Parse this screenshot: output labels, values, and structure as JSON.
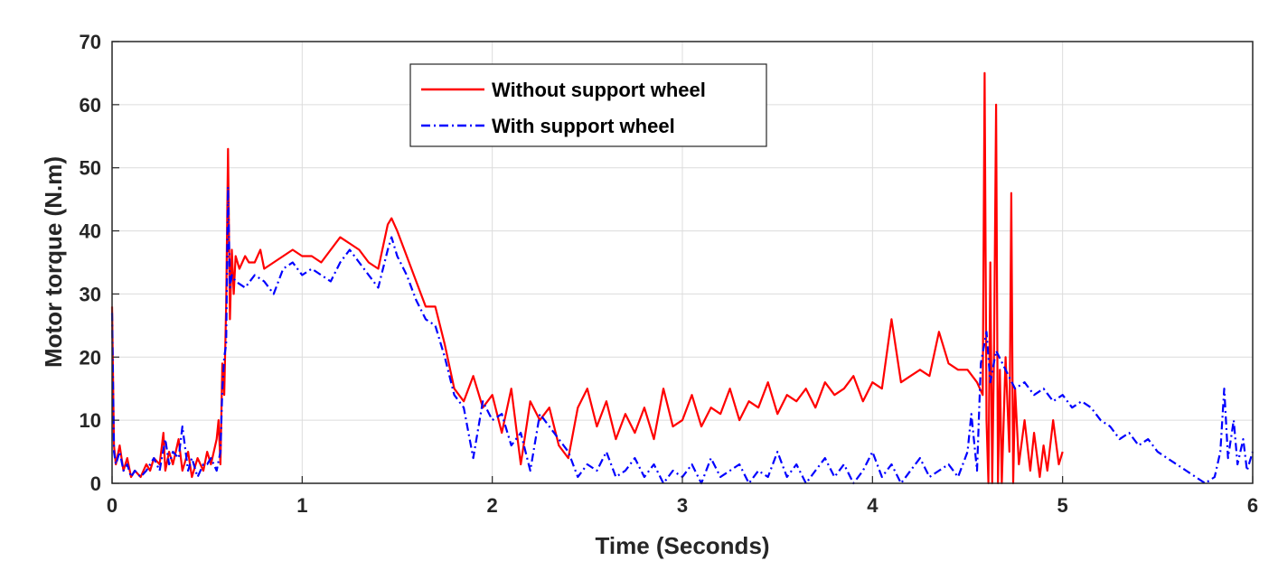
{
  "chart_data": {
    "type": "line",
    "title": "",
    "xlabel": "Time (Seconds)",
    "ylabel": "Motor torque (N.m)",
    "xlim": [
      0,
      6
    ],
    "ylim": [
      0,
      70
    ],
    "xticks": [
      0,
      1,
      2,
      3,
      4,
      5,
      6
    ],
    "yticks": [
      0,
      10,
      20,
      30,
      40,
      50,
      60,
      70
    ],
    "xtick_labels": [
      "0",
      "1",
      "2",
      "3",
      "4",
      "5",
      "6"
    ],
    "ytick_labels": [
      "0",
      "10",
      "20",
      "30",
      "40",
      "50",
      "60",
      "70"
    ],
    "grid": true,
    "legend_position": "top-center",
    "series": [
      {
        "name": "Without support wheel",
        "color": "#ff0000",
        "line_style": "solid",
        "x": [
          0,
          0.01,
          0.02,
          0.04,
          0.06,
          0.08,
          0.1,
          0.12,
          0.15,
          0.18,
          0.2,
          0.22,
          0.25,
          0.27,
          0.28,
          0.3,
          0.32,
          0.35,
          0.37,
          0.4,
          0.42,
          0.45,
          0.48,
          0.5,
          0.52,
          0.55,
          0.56,
          0.57,
          0.58,
          0.59,
          0.6,
          0.61,
          0.62,
          0.63,
          0.64,
          0.65,
          0.67,
          0.7,
          0.72,
          0.75,
          0.78,
          0.8,
          0.85,
          0.9,
          0.95,
          1.0,
          1.05,
          1.1,
          1.15,
          1.2,
          1.25,
          1.3,
          1.35,
          1.4,
          1.45,
          1.47,
          1.5,
          1.55,
          1.6,
          1.65,
          1.7,
          1.75,
          1.8,
          1.85,
          1.9,
          1.95,
          2.0,
          2.05,
          2.1,
          2.15,
          2.2,
          2.25,
          2.3,
          2.35,
          2.4,
          2.45,
          2.5,
          2.55,
          2.6,
          2.65,
          2.7,
          2.75,
          2.8,
          2.85,
          2.9,
          2.95,
          3.0,
          3.05,
          3.1,
          3.15,
          3.2,
          3.25,
          3.3,
          3.35,
          3.4,
          3.45,
          3.5,
          3.55,
          3.6,
          3.65,
          3.7,
          3.75,
          3.8,
          3.85,
          3.9,
          3.95,
          4.0,
          4.05,
          4.1,
          4.15,
          4.2,
          4.25,
          4.3,
          4.35,
          4.4,
          4.45,
          4.5,
          4.55,
          4.58,
          4.59,
          4.6,
          4.61,
          4.62,
          4.63,
          4.64,
          4.65,
          4.66,
          4.67,
          4.68,
          4.7,
          4.72,
          4.73,
          4.74,
          4.75,
          4.77,
          4.8,
          4.83,
          4.85,
          4.88,
          4.9,
          4.92,
          4.95,
          4.98,
          5.0
        ],
        "y": [
          28,
          6,
          3,
          6,
          2,
          4,
          1,
          2,
          1,
          3,
          2,
          4,
          3,
          8,
          2,
          5,
          3,
          7,
          2,
          5,
          1,
          4,
          2,
          5,
          3,
          7,
          10,
          3,
          19,
          14,
          28,
          53,
          26,
          37,
          30,
          36,
          34,
          36,
          35,
          35,
          37,
          34,
          35,
          36,
          37,
          36,
          36,
          35,
          37,
          39,
          38,
          37,
          35,
          34,
          41,
          42,
          40,
          36,
          32,
          28,
          28,
          22,
          15,
          13,
          17,
          12,
          14,
          8,
          15,
          3,
          13,
          10,
          12,
          6,
          4,
          12,
          15,
          9,
          13,
          7,
          11,
          8,
          12,
          7,
          15,
          9,
          10,
          14,
          9,
          12,
          11,
          15,
          10,
          13,
          12,
          16,
          11,
          14,
          13,
          15,
          12,
          16,
          14,
          15,
          17,
          13,
          16,
          15,
          26,
          16,
          17,
          18,
          17,
          24,
          19,
          18,
          18,
          16,
          14,
          65,
          10,
          0,
          35,
          0,
          22,
          60,
          0,
          18,
          0,
          20,
          5,
          46,
          0,
          15,
          3,
          10,
          2,
          8,
          1,
          6,
          2,
          10,
          3,
          5
        ]
      },
      {
        "name": "With support wheel",
        "color": "#0000ff",
        "line_style": "dashdot",
        "x": [
          0,
          0.01,
          0.02,
          0.04,
          0.06,
          0.08,
          0.1,
          0.12,
          0.15,
          0.18,
          0.2,
          0.22,
          0.25,
          0.28,
          0.3,
          0.32,
          0.35,
          0.37,
          0.4,
          0.42,
          0.45,
          0.48,
          0.5,
          0.52,
          0.55,
          0.57,
          0.58,
          0.59,
          0.6,
          0.61,
          0.62,
          0.63,
          0.65,
          0.7,
          0.75,
          0.8,
          0.85,
          0.9,
          0.95,
          1.0,
          1.05,
          1.1,
          1.15,
          1.2,
          1.25,
          1.3,
          1.35,
          1.4,
          1.45,
          1.47,
          1.5,
          1.55,
          1.6,
          1.65,
          1.7,
          1.75,
          1.8,
          1.85,
          1.9,
          1.95,
          2.0,
          2.05,
          2.1,
          2.15,
          2.2,
          2.25,
          2.3,
          2.35,
          2.4,
          2.45,
          2.5,
          2.55,
          2.6,
          2.65,
          2.7,
          2.75,
          2.8,
          2.85,
          2.9,
          2.95,
          3.0,
          3.05,
          3.1,
          3.15,
          3.2,
          3.25,
          3.3,
          3.35,
          3.4,
          3.45,
          3.5,
          3.55,
          3.6,
          3.65,
          3.7,
          3.75,
          3.8,
          3.85,
          3.9,
          3.95,
          4.0,
          4.05,
          4.1,
          4.15,
          4.2,
          4.25,
          4.3,
          4.35,
          4.4,
          4.45,
          4.5,
          4.52,
          4.55,
          4.57,
          4.6,
          4.62,
          4.65,
          4.7,
          4.75,
          4.8,
          4.85,
          4.9,
          4.95,
          5.0,
          5.05,
          5.1,
          5.15,
          5.2,
          5.25,
          5.3,
          5.35,
          5.4,
          5.45,
          5.5,
          5.55,
          5.6,
          5.65,
          5.7,
          5.75,
          5.8,
          5.83,
          5.85,
          5.87,
          5.9,
          5.92,
          5.95,
          5.97,
          6.0
        ],
        "y": [
          27,
          5,
          3,
          5,
          2,
          3,
          1,
          2,
          1,
          2,
          3,
          4,
          2,
          7,
          3,
          5,
          4,
          9,
          2,
          4,
          1,
          3,
          3,
          4,
          2,
          5,
          15,
          20,
          22,
          47,
          31,
          33,
          32,
          31,
          33,
          32,
          30,
          34,
          35,
          33,
          34,
          33,
          32,
          35,
          37,
          35,
          33,
          31,
          37,
          39,
          36,
          33,
          29,
          26,
          25,
          20,
          14,
          12,
          4,
          13,
          10,
          11,
          6,
          8,
          2,
          11,
          9,
          7,
          5,
          1,
          3,
          2,
          5,
          1,
          2,
          4,
          1,
          3,
          0,
          2,
          1,
          3,
          0,
          4,
          1,
          2,
          3,
          0,
          2,
          1,
          5,
          1,
          3,
          0,
          2,
          4,
          1,
          3,
          0,
          2,
          5,
          1,
          3,
          0,
          2,
          4,
          1,
          2,
          3,
          1,
          5,
          11,
          2,
          19,
          24,
          16,
          21,
          18,
          15,
          16,
          14,
          15,
          13,
          14,
          12,
          13,
          12,
          10,
          9,
          7,
          8,
          6,
          7,
          5,
          4,
          3,
          2,
          1,
          0,
          1,
          5,
          15,
          4,
          10,
          3,
          7,
          2,
          5
        ]
      }
    ]
  }
}
